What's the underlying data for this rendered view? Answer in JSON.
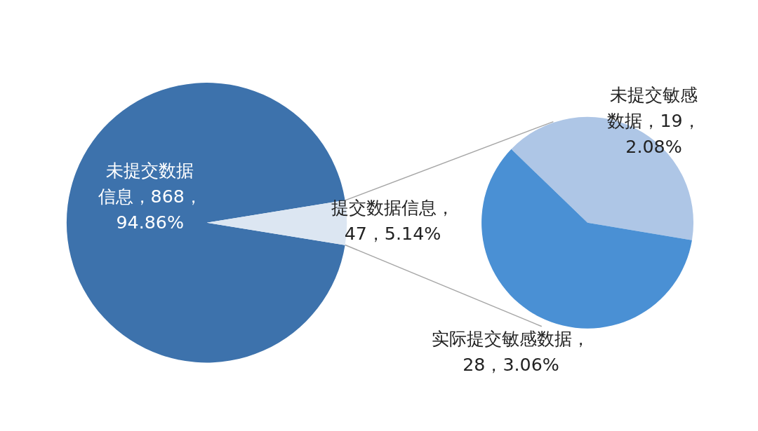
{
  "chart_data": [
    {
      "type": "pie",
      "categories": [
        "未提交数据信息",
        "提交数据信息"
      ],
      "values": [
        868,
        47
      ],
      "colors": [
        "#3d72ac",
        "#dce6f2"
      ],
      "value_labels": [
        "，868，94.86%",
        "，47，5.14%"
      ]
    },
    {
      "type": "pie",
      "categories": [
        "未提交敏感数据",
        "实际提交敏感数据"
      ],
      "values": [
        19,
        28
      ],
      "colors": [
        "#aec6e6",
        "#4a90d4"
      ],
      "value_labels": [
        "，19，2.08%",
        "，28，3.06%"
      ]
    }
  ]
}
